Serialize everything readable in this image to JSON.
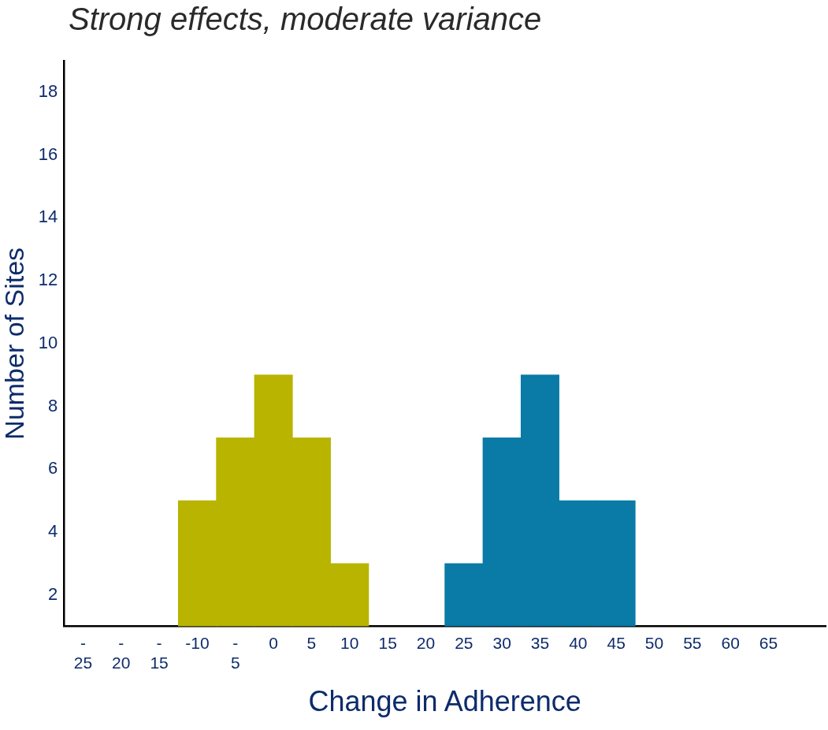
{
  "chart_data": {
    "type": "bar",
    "title": "Strong effects, moderate variance",
    "xlabel": "Change in Adherence",
    "ylabel": "Number of Sites",
    "categories": [
      "-\n25",
      "-\n20",
      "-\n15",
      "-10",
      "-\n5",
      "0",
      "5",
      "10",
      "15",
      "20",
      "25",
      "30",
      "35",
      "40",
      "45",
      "50",
      "55",
      "60",
      "65",
      null
    ],
    "series": [
      {
        "color": "#b8b400",
        "values": [
          null,
          null,
          null,
          5,
          7,
          9,
          7,
          3,
          null,
          null,
          null,
          null,
          null,
          null,
          null,
          null,
          null,
          null,
          null,
          null
        ]
      },
      {
        "color": "#0a7aa6",
        "values": [
          null,
          null,
          null,
          null,
          null,
          null,
          null,
          null,
          null,
          null,
          3,
          7,
          9,
          5,
          5,
          null,
          null,
          null,
          null,
          null
        ]
      }
    ],
    "ylim": [
      1,
      19
    ],
    "yticks": [
      2,
      4,
      6,
      8,
      10,
      12,
      14,
      16,
      18
    ],
    "grid": false,
    "legend": false
  }
}
